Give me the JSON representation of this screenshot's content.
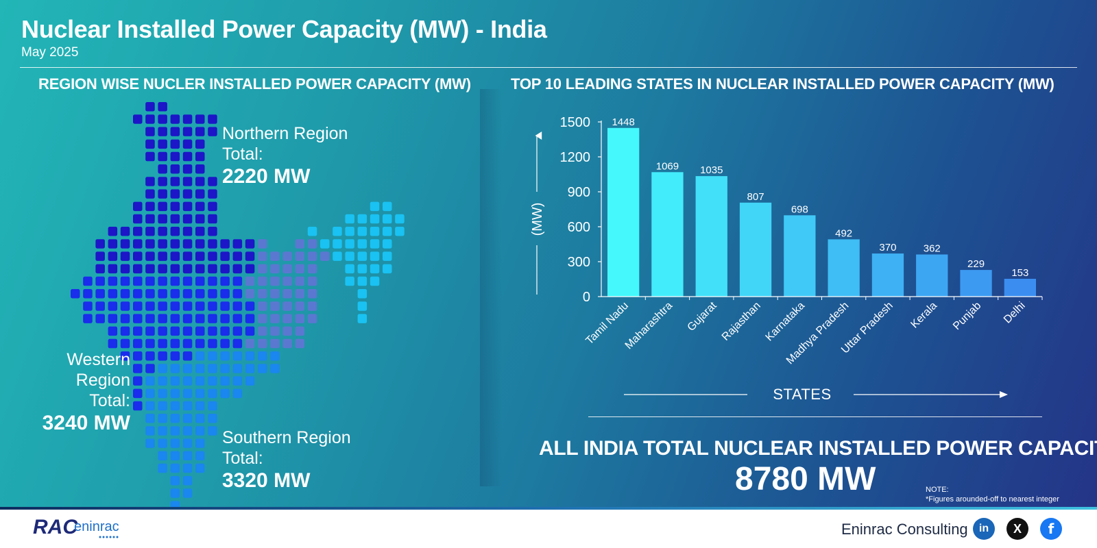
{
  "header": {
    "title": "Nuclear Installed Power Capacity (MW) - India",
    "subtitle": "May 2025"
  },
  "map_section": {
    "heading": "REGION WISE NUCLER INSTALLED POWER CAPACITY (MW)",
    "regions": [
      {
        "name": "Northern Region",
        "total_label": "Total:",
        "value": "2220 MW",
        "color": "#1c16c8"
      },
      {
        "name": "Western Region",
        "total_label": "Total:",
        "value": "3240 MW",
        "color": "#1a2cec"
      },
      {
        "name": "Southern Region",
        "total_label": "Total:",
        "value": "3320 MW",
        "color": "#1a86ef"
      }
    ],
    "other_region_colors": {
      "eastern": "#5b78d0",
      "north_eastern": "#19c2f2"
    }
  },
  "chart_section": {
    "heading": "TOP 10 LEADING STATES IN NUCLEAR INSTALLED POWER CAPACITY (MW)",
    "x_axis_label": "STATES",
    "y_axis_label": "(MW)"
  },
  "chart_data": {
    "type": "bar",
    "title": "TOP 10 LEADING STATES IN NUCLEAR INSTALLED POWER CAPACITY (MW)",
    "xlabel": "STATES",
    "ylabel": "(MW)",
    "categories": [
      "Tamil Nadu",
      "Maharashtra",
      "Gujarat",
      "Rajasthan",
      "Karnataka",
      "Madhya Pradesh",
      "Uttar Pradesh",
      "Kerala",
      "Punjab",
      "Delhi"
    ],
    "values": [
      1448,
      1069,
      1035,
      807,
      698,
      492,
      370,
      362,
      229,
      153
    ],
    "ylim": [
      0,
      1500
    ],
    "yticks": [
      0,
      300,
      600,
      900,
      1200,
      1500
    ],
    "grid": false,
    "colors": {
      "start": "#44f8fc",
      "end": "#3b8ef0"
    }
  },
  "total": {
    "heading": "ALL INDIA TOTAL NUCLEAR INSTALLED POWER CAPACITY",
    "value": "8780 MW"
  },
  "note": {
    "label": "NOTE:",
    "text": "*Figures arounded-off to nearest integer"
  },
  "footer": {
    "logo_text": "RAC",
    "logo_word": "eninrac",
    "brand": "Eninrac Consulting",
    "social": [
      {
        "icon": "linkedin-icon",
        "glyph": "in"
      },
      {
        "icon": "x-icon",
        "glyph": "X"
      },
      {
        "icon": "facebook-icon",
        "glyph": "f"
      }
    ]
  }
}
